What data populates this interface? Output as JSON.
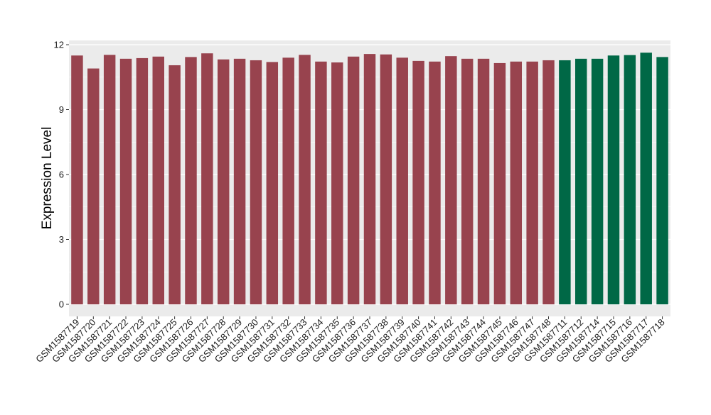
{
  "chart_data": {
    "type": "bar",
    "title": "",
    "xlabel": "",
    "ylabel": "Expression Level",
    "ylim": [
      0,
      12
    ],
    "yticks": [
      0,
      3,
      6,
      9,
      12
    ],
    "grid": true,
    "background": "#ebebeb",
    "gridline_color": "#ffffff",
    "categories": [
      "GSM1587719",
      "GSM1587720",
      "GSM1587721",
      "GSM1587722",
      "GSM1587723",
      "GSM1587724",
      "GSM1587725",
      "GSM1587726",
      "GSM1587727",
      "GSM1587728",
      "GSM1587729",
      "GSM1587730",
      "GSM1587731",
      "GSM1587732",
      "GSM1587733",
      "GSM1587734",
      "GSM1587735",
      "GSM1587736",
      "GSM1587737",
      "GSM1587738",
      "GSM1587739",
      "GSM1587740",
      "GSM1587741",
      "GSM1587742",
      "GSM1587743",
      "GSM1587744",
      "GSM1587745",
      "GSM1587746",
      "GSM1587747",
      "GSM1587748",
      "GSM1587711",
      "GSM1587712",
      "GSM1587714",
      "GSM1587715",
      "GSM1587716",
      "GSM1587717",
      "GSM1587718"
    ],
    "values": [
      11.5,
      10.9,
      11.53,
      11.35,
      11.38,
      11.45,
      11.05,
      11.43,
      11.6,
      11.32,
      11.35,
      11.28,
      11.2,
      11.4,
      11.53,
      11.22,
      11.18,
      11.45,
      11.57,
      11.55,
      11.4,
      11.25,
      11.22,
      11.47,
      11.35,
      11.35,
      11.15,
      11.22,
      11.22,
      11.28,
      11.28,
      11.35,
      11.35,
      11.5,
      11.52,
      11.63,
      11.43
    ],
    "groups": [
      0,
      0,
      0,
      0,
      0,
      0,
      0,
      0,
      0,
      0,
      0,
      0,
      0,
      0,
      0,
      0,
      0,
      0,
      0,
      0,
      0,
      0,
      0,
      0,
      0,
      0,
      0,
      0,
      0,
      0,
      1,
      1,
      1,
      1,
      1,
      1,
      1
    ],
    "group_colors": [
      "#98434e",
      "#006846"
    ]
  }
}
